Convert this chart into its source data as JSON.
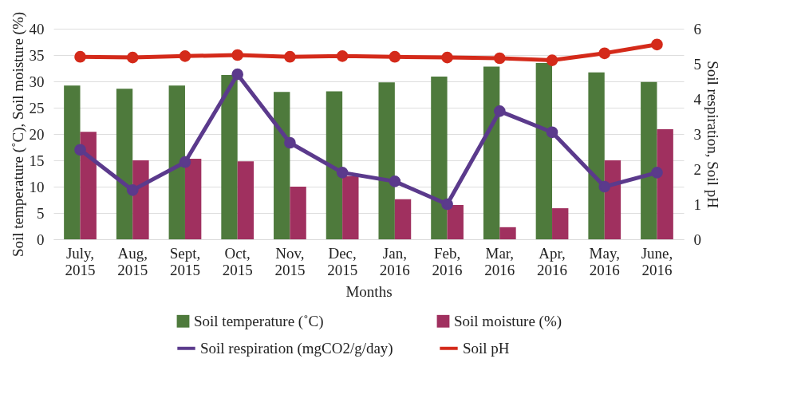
{
  "chart_data": {
    "type": "bar",
    "xlabel": "Months",
    "ylabel": "Soil temperature (˚C), Soil moisture (%)",
    "y2label": "Soil respiration, Soil pH",
    "categories": [
      "July, 2015",
      "Aug, 2015",
      "Sept, 2015",
      "Oct, 2015",
      "Nov, 2015",
      "Dec, 2015",
      "Jan, 2016",
      "Feb, 2016",
      "Mar, 2016",
      "Apr, 2016",
      "May, 2016",
      "June, 2016"
    ],
    "series": [
      {
        "name": "Soil temperature (˚C)",
        "color": "#4e7a3c",
        "values": [
          29.2,
          28.6,
          29.2,
          31.2,
          28.0,
          28.1,
          29.8,
          30.9,
          32.8,
          33.5,
          31.7,
          29.9
        ]
      },
      {
        "name": "Soil moisture (%)",
        "color": "#a0305f",
        "values": [
          20.4,
          15.0,
          15.3,
          14.8,
          10.0,
          12.0,
          7.6,
          6.5,
          2.3,
          5.9,
          15.0,
          20.9
        ]
      },
      {
        "name": "Soil respiration (mgCO2/g/day)",
        "type": "line",
        "axis": "y2",
        "color": "#5b3a8c",
        "values": [
          2.55,
          1.4,
          2.2,
          4.7,
          2.75,
          1.9,
          1.65,
          1.0,
          3.65,
          3.05,
          1.5,
          1.9
        ]
      },
      {
        "name": "Soil pH",
        "type": "line",
        "axis": "y2",
        "color": "#d42a1a",
        "values": [
          5.2,
          5.18,
          5.22,
          5.25,
          5.2,
          5.22,
          5.2,
          5.18,
          5.16,
          5.1,
          5.3,
          5.55
        ]
      }
    ],
    "ylim": [
      0,
      40
    ],
    "yticks": [
      0,
      5,
      10,
      15,
      20,
      25,
      30,
      35,
      40
    ],
    "y2lim": [
      0,
      6
    ],
    "y2ticks": [
      0,
      1,
      2,
      3,
      4,
      5,
      6
    ],
    "grid": "y",
    "legend": "bottom",
    "marker": "circle",
    "line_style": "solid"
  }
}
